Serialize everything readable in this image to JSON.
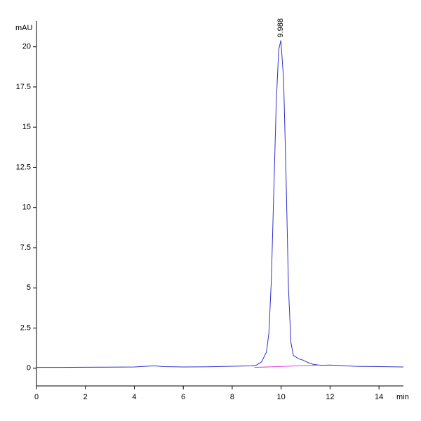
{
  "chart_data": {
    "type": "line",
    "x_label": "min",
    "y_label": "mAU",
    "xlim": [
      0,
      15
    ],
    "ylim": [
      -1.1,
      21.6
    ],
    "xticks": [
      0,
      2,
      4,
      6,
      8,
      10,
      12,
      14
    ],
    "yticks": [
      0,
      2.5,
      5,
      7.5,
      10,
      12.5,
      15,
      17.5,
      20
    ],
    "series": [
      {
        "name": "signal",
        "color": "#3030d0",
        "x": [
          0,
          1,
          2,
          3,
          4,
          4.5,
          4.8,
          5.2,
          6,
          7,
          8,
          8.8,
          9.0,
          9.2,
          9.4,
          9.5,
          9.6,
          9.7,
          9.8,
          9.9,
          9.988,
          10.1,
          10.2,
          10.3,
          10.4,
          10.5,
          10.7,
          10.9,
          11.1,
          11.3,
          11.6,
          12,
          13,
          14,
          15
        ],
        "values": [
          0.05,
          0.05,
          0.06,
          0.07,
          0.08,
          0.12,
          0.15,
          0.1,
          0.08,
          0.09,
          0.12,
          0.15,
          0.2,
          0.4,
          1.0,
          2.2,
          5.5,
          11,
          16.5,
          19.8,
          20.4,
          18,
          12,
          5,
          1.6,
          0.8,
          0.6,
          0.5,
          0.35,
          0.25,
          0.18,
          0.2,
          0.12,
          0.1,
          0.08
        ]
      },
      {
        "name": "baseline",
        "color": "#e040e0",
        "x": [
          8.9,
          11.6
        ],
        "values": [
          0.05,
          0.2
        ]
      }
    ],
    "annotations": [
      {
        "text": "9.988",
        "x": 9.988,
        "y": 20.4
      }
    ]
  }
}
